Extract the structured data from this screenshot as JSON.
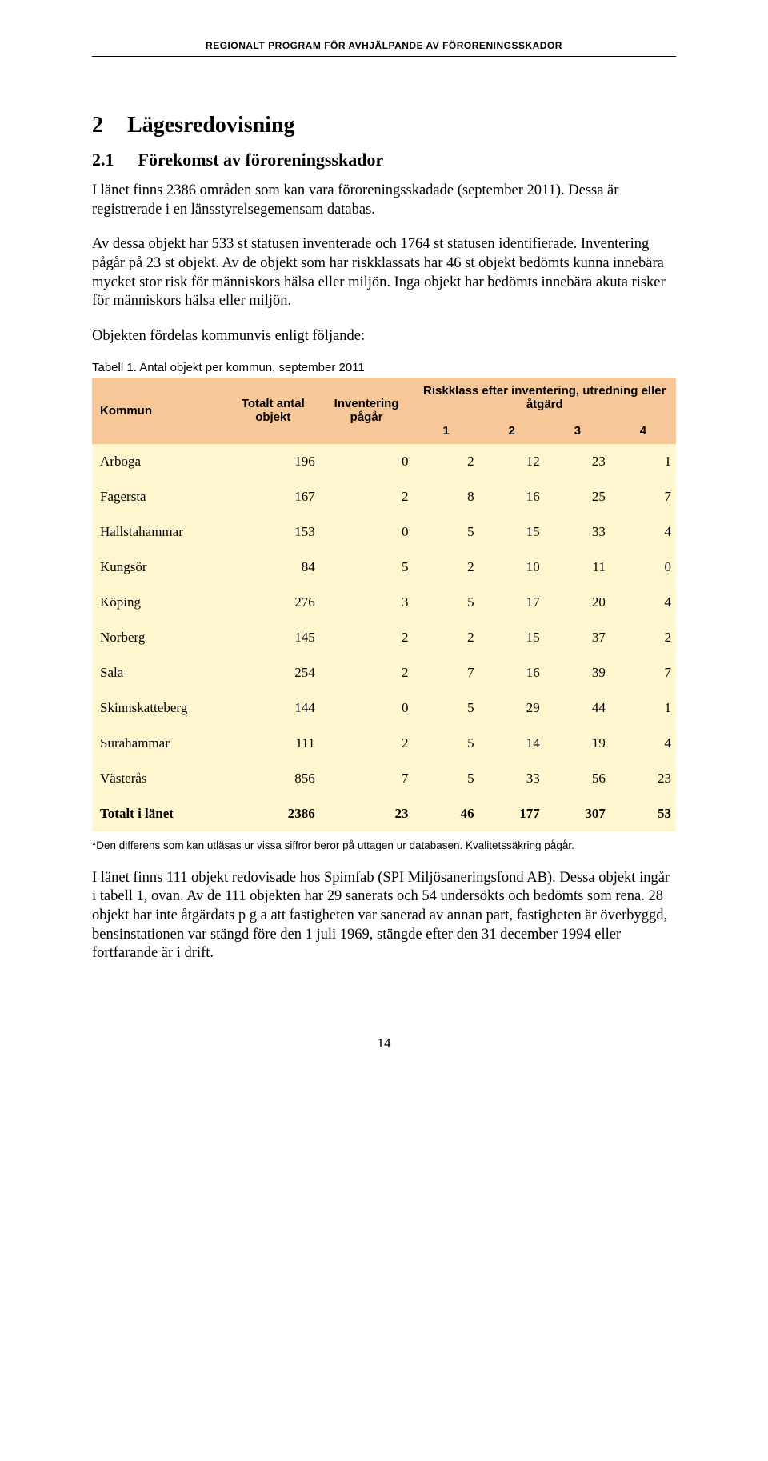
{
  "running_header": "REGIONALT PROGRAM FÖR AVHJÄLPANDE AV FÖRORENINGSSKADOR",
  "h1": {
    "num": "2",
    "text": "Lägesredovisning"
  },
  "h2": {
    "num": "2.1",
    "text": "Förekomst av föroreningsskador"
  },
  "para1": "I länet finns 2386 områden som kan vara föroreningsskadade (september 2011). Dessa är registrerade i en länsstyrelsegemensam databas.",
  "para2": "Av dessa objekt har 533 st statusen inventerade och 1764 st statusen identifierade. Inventering pågår på 23 st objekt. Av de objekt som har riskklassats har 46 st objekt bedömts kunna innebära mycket stor risk för människors hälsa eller miljön. Inga objekt har bedömts innebära akuta risker för människors hälsa eller miljön.",
  "para3": "Objekten fördelas kommunvis enligt följande:",
  "table_caption": "Tabell 1. Antal objekt per kommun, september 2011",
  "table": {
    "header_bg": "#f7c797",
    "body_bg": "#fdf6cf",
    "columns": {
      "kommun": "Kommun",
      "total": "Totalt antal objekt",
      "inventering": "Inventering pågår",
      "riskklass_group": "Riskklass efter inventering, utredning eller åtgärd",
      "r1": "1",
      "r2": "2",
      "r3": "3",
      "r4": "4"
    },
    "rows": [
      {
        "kommun": "Arboga",
        "total": "196",
        "inv": "0",
        "r1": "2",
        "r2": "12",
        "r3": "23",
        "r4": "1"
      },
      {
        "kommun": "Fagersta",
        "total": "167",
        "inv": "2",
        "r1": "8",
        "r2": "16",
        "r3": "25",
        "r4": "7"
      },
      {
        "kommun": "Hallstahammar",
        "total": "153",
        "inv": "0",
        "r1": "5",
        "r2": "15",
        "r3": "33",
        "r4": "4"
      },
      {
        "kommun": "Kungsör",
        "total": "84",
        "inv": "5",
        "r1": "2",
        "r2": "10",
        "r3": "11",
        "r4": "0"
      },
      {
        "kommun": "Köping",
        "total": "276",
        "inv": "3",
        "r1": "5",
        "r2": "17",
        "r3": "20",
        "r4": "4"
      },
      {
        "kommun": "Norberg",
        "total": "145",
        "inv": "2",
        "r1": "2",
        "r2": "15",
        "r3": "37",
        "r4": "2"
      },
      {
        "kommun": "Sala",
        "total": "254",
        "inv": "2",
        "r1": "7",
        "r2": "16",
        "r3": "39",
        "r4": "7"
      },
      {
        "kommun": "Skinnskatteberg",
        "total": "144",
        "inv": "0",
        "r1": "5",
        "r2": "29",
        "r3": "44",
        "r4": "1"
      },
      {
        "kommun": "Surahammar",
        "total": "111",
        "inv": "2",
        "r1": "5",
        "r2": "14",
        "r3": "19",
        "r4": "4"
      },
      {
        "kommun": "Västerås",
        "total": "856",
        "inv": "7",
        "r1": "5",
        "r2": "33",
        "r3": "56",
        "r4": "23"
      }
    ],
    "total_row": {
      "kommun": "Totalt i länet",
      "total": "2386",
      "inv": "23",
      "r1": "46",
      "r2": "177",
      "r3": "307",
      "r4": "53"
    }
  },
  "footnote": "*Den differens som kan utläsas ur vissa siffror beror på uttagen ur databasen. Kvalitetssäkring pågår.",
  "para4": "I länet finns 111 objekt redovisade hos Spimfab (SPI Miljösaneringsfond AB). Dessa objekt ingår i tabell 1, ovan. Av de 111 objekten har 29 sanerats och 54 undersökts och bedömts som rena. 28 objekt har inte åtgärdats p g a att fastigheten var sanerad av annan part, fastigheten är överbyggd, bensinstationen var stängd före den 1 juli 1969, stängde efter den 31 december 1994 eller fortfarande är i drift.",
  "page_number": "14"
}
